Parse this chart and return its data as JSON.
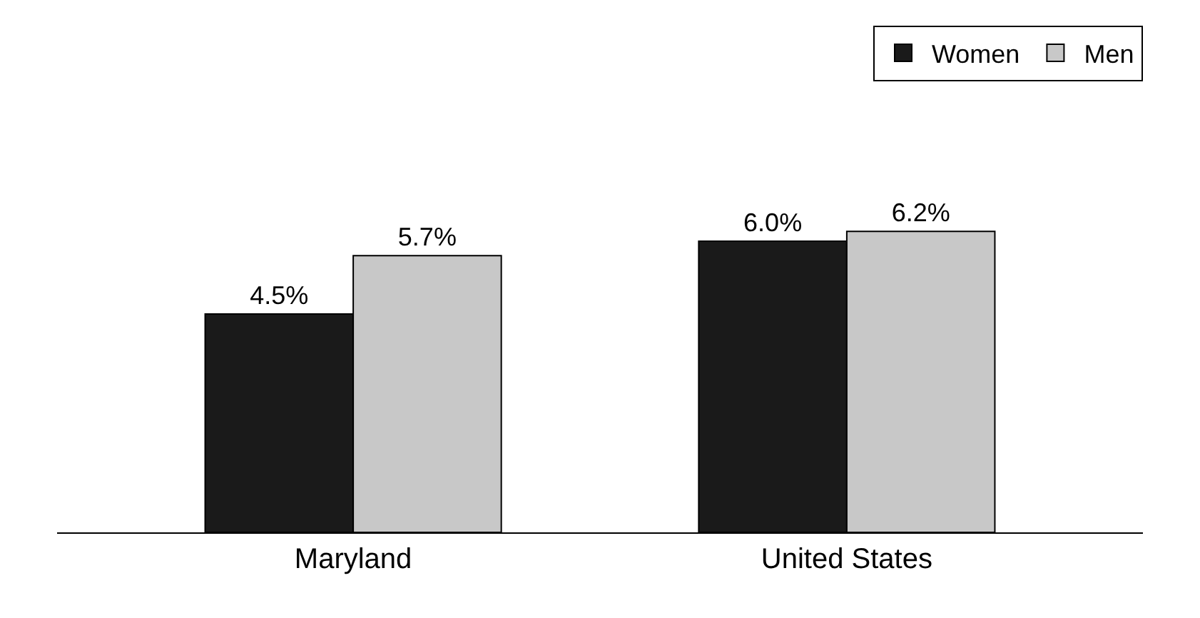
{
  "chart_data": {
    "type": "bar",
    "categories": [
      "Maryland",
      "United States"
    ],
    "series": [
      {
        "name": "Women",
        "color": "#1a1a1a",
        "values": [
          4.5,
          6.0
        ],
        "value_labels": [
          "4.5%",
          "6.0%"
        ]
      },
      {
        "name": "Men",
        "color": "#c8c8c8",
        "values": [
          5.7,
          6.2
        ],
        "value_labels": [
          "5.7%",
          "6.2%"
        ]
      }
    ],
    "legend": "top right"
  }
}
